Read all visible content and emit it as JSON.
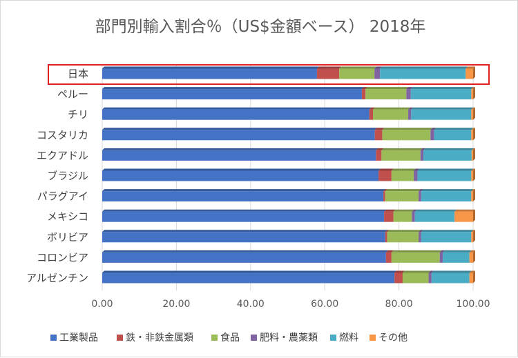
{
  "chart_data": {
    "type": "bar",
    "orientation": "horizontal",
    "stacked": true,
    "title": "部門別輸入割合％（US$金額ベース） 2018年",
    "categories": [
      "日本",
      "ペルー",
      "チリ",
      "コスタリカ",
      "エクアドル",
      "ブラジル",
      "パラグアイ",
      "メキシコ",
      "ボリビア",
      "コロンビア",
      "アルゼンチン"
    ],
    "highlighted_category": "日本",
    "xlim": [
      0,
      100
    ],
    "x_ticks": [
      "0.00",
      "20.00",
      "40.00",
      "60.00",
      "80.00",
      "100.00"
    ],
    "grid": true,
    "legend_position": "bottom",
    "series": [
      {
        "name": "工業製品",
        "color": "#4472c4",
        "values": [
          57.9,
          70.0,
          72.0,
          73.5,
          73.8,
          74.5,
          75.8,
          76.0,
          76.3,
          76.5,
          78.8
        ]
      },
      {
        "name": "鉄・非鉄金属類",
        "color": "#c0504d",
        "values": [
          6.0,
          1.0,
          1.0,
          2.0,
          1.5,
          3.5,
          0.5,
          2.5,
          0.5,
          1.5,
          2.2
        ]
      },
      {
        "name": "食品",
        "color": "#9bbb59",
        "values": [
          9.5,
          11.0,
          9.5,
          13.0,
          10.5,
          6.0,
          9.0,
          5.0,
          8.5,
          13.0,
          7.0
        ]
      },
      {
        "name": "肥料・農薬類",
        "color": "#8064a2",
        "values": [
          1.5,
          1.2,
          0.8,
          1.0,
          0.8,
          1.0,
          0.7,
          0.8,
          0.7,
          0.8,
          0.8
        ]
      },
      {
        "name": "燃料",
        "color": "#4bacc6",
        "values": [
          23.1,
          16.3,
          16.2,
          10.0,
          13.0,
          14.5,
          13.5,
          10.7,
          13.5,
          7.2,
          10.2
        ]
      },
      {
        "name": "その他",
        "color": "#f79646",
        "values": [
          2.0,
          0.5,
          0.5,
          0.5,
          0.4,
          0.5,
          0.5,
          5.0,
          0.5,
          1.0,
          1.0
        ]
      }
    ]
  }
}
